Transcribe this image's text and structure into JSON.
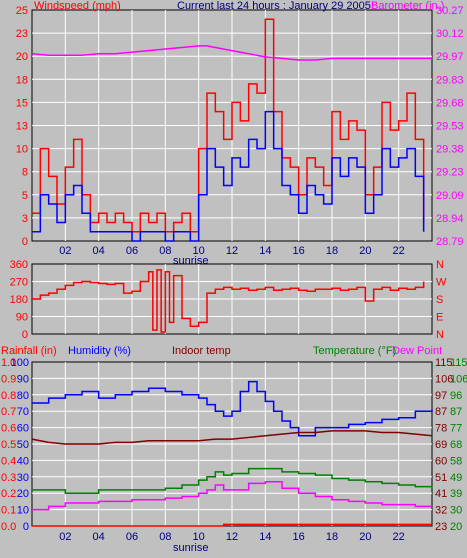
{
  "header": {
    "left_title": "Windspeed (mph)",
    "center_title": "Current last 24 hours : January 29 2005",
    "right_title": "Barometer (in.)"
  },
  "x_axis": {
    "ticks": [
      "02",
      "04",
      "06",
      "08",
      "10",
      "12",
      "14",
      "16",
      "18",
      "20",
      "22"
    ],
    "sunrise_label": "sunrise"
  },
  "colors": {
    "wind_gust": "#ff0000",
    "wind_avg": "#0000ff",
    "barometer": "#ff00ff",
    "wind_dir": "#ff0000",
    "humidity": "#0000ff",
    "indoor_temp": "#800000",
    "temperature": "#008000",
    "dew_point": "#ff00ff",
    "rain": "#ff0000",
    "grid": "#ffffff"
  },
  "chart_data": [
    {
      "type": "line",
      "name": "wind_and_barometer",
      "x_range": [
        0,
        24
      ],
      "left_axis": {
        "label": "Windspeed (mph)",
        "ticks": [
          "0",
          "3",
          "5",
          "8",
          "10",
          "13",
          "15",
          "18",
          "20",
          "23",
          "25"
        ],
        "ylim": [
          0,
          25
        ]
      },
      "right_axis": {
        "label": "Barometer (in.)",
        "ticks": [
          "28.79",
          "28.94",
          "29.09",
          "29.23",
          "29.38",
          "29.53",
          "29.68",
          "29.83",
          "29.97",
          "30.12",
          "30.27"
        ],
        "ylim": [
          28.79,
          30.27
        ]
      },
      "series": [
        {
          "name": "Gust",
          "x": [
            0,
            0.5,
            1,
            1.5,
            2,
            2.5,
            3,
            3.5,
            4,
            4.5,
            5,
            5.5,
            6,
            6.5,
            7,
            7.5,
            8,
            8.5,
            9,
            9.5,
            10,
            10.5,
            11,
            11.5,
            12,
            12.5,
            13,
            13.5,
            14,
            14.5,
            15,
            15.5,
            16,
            16.5,
            17,
            17.5,
            18,
            18.5,
            19,
            19.5,
            20,
            20.5,
            21,
            21.5,
            22,
            22.5,
            23,
            23.5
          ],
          "values": [
            3,
            10,
            7,
            4,
            8,
            11,
            5,
            2,
            3,
            2,
            3,
            2,
            1,
            3,
            2,
            3,
            1,
            2,
            3,
            1,
            10,
            16,
            14,
            11,
            15,
            13,
            17,
            16,
            24,
            14,
            9,
            8,
            5,
            9,
            8,
            6,
            14,
            11,
            13,
            12,
            5,
            8,
            15,
            12,
            13,
            16,
            11,
            2
          ]
        },
        {
          "name": "Average",
          "x": [
            0,
            0.5,
            1,
            1.5,
            2,
            2.5,
            3,
            3.5,
            4,
            4.5,
            5,
            5.5,
            6,
            6.5,
            7,
            7.5,
            8,
            8.5,
            9,
            9.5,
            10,
            10.5,
            11,
            11.5,
            12,
            12.5,
            13,
            13.5,
            14,
            14.5,
            15,
            15.5,
            16,
            16.5,
            17,
            17.5,
            18,
            18.5,
            19,
            19.5,
            20,
            20.5,
            21,
            21.5,
            22,
            22.5,
            23,
            23.5
          ],
          "values": [
            1,
            5,
            4,
            2,
            5,
            6,
            3,
            1,
            1,
            1,
            1,
            1,
            0,
            1,
            1,
            1,
            0,
            1,
            1,
            0,
            5,
            10,
            8,
            6,
            9,
            8,
            11,
            10,
            14,
            10,
            6,
            5,
            3,
            6,
            5,
            4,
            9,
            7,
            9,
            8,
            3,
            5,
            10,
            8,
            9,
            10,
            7,
            1
          ]
        },
        {
          "name": "Barometer",
          "axis": "right",
          "x": [
            0,
            1,
            2,
            3,
            4,
            5,
            6,
            7,
            8,
            9,
            10,
            10.5,
            11,
            12,
            13,
            14,
            15,
            16,
            17,
            18,
            19,
            20,
            21,
            22,
            23,
            24
          ],
          "values": [
            29.99,
            29.98,
            29.98,
            29.98,
            29.99,
            29.99,
            30.0,
            30.01,
            30.02,
            30.03,
            30.04,
            30.04,
            30.03,
            30.01,
            29.99,
            29.97,
            29.96,
            29.95,
            29.95,
            29.96,
            29.96,
            29.96,
            29.96,
            29.96,
            29.96,
            29.96
          ]
        }
      ]
    },
    {
      "type": "line",
      "name": "wind_direction",
      "x_range": [
        0,
        24
      ],
      "left_axis": {
        "ticks": [
          "0",
          "90",
          "180",
          "270",
          "360"
        ],
        "ylim": [
          0,
          360
        ]
      },
      "right_axis": {
        "ticks": [
          "N",
          "E",
          "S",
          "W",
          "N"
        ]
      },
      "series": [
        {
          "name": "Direction",
          "x": [
            0,
            0.5,
            1,
            1.5,
            2,
            2.5,
            3,
            3.5,
            4,
            4.5,
            5,
            5.5,
            6,
            6.5,
            7,
            7.25,
            7.5,
            7.75,
            8,
            8.25,
            8.5,
            9,
            9.5,
            10,
            10.5,
            11,
            11.5,
            12,
            12.5,
            13,
            13.5,
            14,
            14.5,
            15,
            15.5,
            16,
            16.5,
            17,
            17.5,
            18,
            18.5,
            19,
            19.5,
            20,
            20.5,
            21,
            21.5,
            22,
            22.5,
            23,
            23.5
          ],
          "values": [
            180,
            200,
            210,
            230,
            250,
            265,
            270,
            265,
            260,
            255,
            260,
            210,
            220,
            270,
            320,
            20,
            330,
            10,
            320,
            60,
            300,
            80,
            40,
            60,
            210,
            230,
            240,
            230,
            235,
            225,
            230,
            240,
            225,
            230,
            235,
            225,
            220,
            230,
            230,
            235,
            225,
            230,
            240,
            170,
            230,
            240,
            225,
            235,
            230,
            240,
            270
          ]
        }
      ]
    },
    {
      "type": "line",
      "name": "humidity_temperature",
      "x_range": [
        0,
        24
      ],
      "legend": [
        "Rainfall (in)",
        "Humidity (%)",
        "Indoor temp",
        "Temperature (°F)",
        "Dew Point"
      ],
      "left_axis_rain": {
        "label": "Rainfall (in)",
        "ticks": [
          "0.0",
          "0.1",
          "0.2",
          "0.3",
          "0.4",
          "0.5",
          "0.6",
          "0.7",
          "0.8",
          "0.9",
          "1.0"
        ],
        "ylim": [
          0,
          1.0
        ]
      },
      "left_axis_humidity": {
        "label": "Humidity (%)",
        "ticks": [
          "0",
          "10",
          "20",
          "30",
          "40",
          "50",
          "60",
          "70",
          "80",
          "90",
          "100"
        ],
        "ylim": [
          0,
          100
        ]
      },
      "right_axis_a": {
        "label": "Temperature (°F)",
        "ticks": [
          "23",
          "32",
          "41",
          "51",
          "60",
          "69",
          "78",
          "87",
          "97",
          "106",
          "115"
        ],
        "ylim": [
          23,
          115
        ]
      },
      "right_axis_b": {
        "label": "Dew Point",
        "ticks": [
          "20",
          "30",
          "39",
          "49",
          "58",
          "68",
          "77",
          "87",
          "96",
          "106",
          "115"
        ],
        "ylim": [
          20,
          115
        ]
      },
      "series": [
        {
          "name": "Humidity (%)",
          "x": [
            0,
            1,
            2,
            3,
            4,
            5,
            6,
            7,
            8,
            9,
            10,
            10.5,
            11,
            11.5,
            12,
            12.5,
            13,
            13.5,
            14,
            14.5,
            15,
            15.5,
            16,
            16.5,
            17,
            18,
            19,
            20,
            21,
            22,
            23,
            24
          ],
          "values": [
            75,
            78,
            80,
            82,
            78,
            80,
            82,
            84,
            82,
            80,
            78,
            74,
            70,
            67,
            70,
            82,
            88,
            82,
            76,
            70,
            64,
            60,
            55,
            55,
            60,
            60,
            62,
            63,
            65,
            66,
            70,
            71
          ]
        },
        {
          "name": "Indoor temp",
          "x": [
            0,
            1,
            2,
            3,
            4,
            5,
            6,
            7,
            8,
            9,
            10,
            11,
            12,
            13,
            14,
            15,
            16,
            17,
            18,
            19,
            20,
            21,
            22,
            23,
            24
          ],
          "values": [
            53,
            51,
            50,
            50,
            50,
            51,
            51,
            52,
            52,
            52,
            52,
            53,
            53,
            54,
            55,
            56,
            57,
            57,
            58,
            58,
            58,
            57,
            57,
            56,
            55
          ]
        },
        {
          "name": "Temperature",
          "x": [
            0,
            1,
            2,
            3,
            4,
            5,
            6,
            7,
            8,
            9,
            10,
            10.5,
            11,
            11.5,
            12,
            13,
            14,
            15,
            16,
            17,
            18,
            19,
            20,
            21,
            22,
            23,
            24
          ],
          "values": [
            22,
            22,
            20,
            20,
            22,
            22,
            22,
            22,
            23,
            25,
            28,
            30,
            33,
            31,
            32,
            35,
            35,
            33,
            32,
            31,
            29,
            28,
            27,
            26,
            25,
            24,
            23
          ]
        },
        {
          "name": "Dew Point",
          "x": [
            0,
            1,
            2,
            3,
            4,
            5,
            6,
            7,
            8,
            9,
            10,
            10.5,
            11,
            11.5,
            12,
            13,
            14,
            15,
            16,
            17,
            18,
            19,
            20,
            21,
            22,
            23,
            24
          ],
          "values": [
            10,
            12,
            14,
            14,
            15,
            15,
            16,
            16,
            17,
            18,
            20,
            22,
            25,
            22,
            22,
            26,
            27,
            23,
            20,
            18,
            16,
            15,
            14,
            13,
            13,
            12,
            12
          ]
        },
        {
          "name": "Rainfall (in)",
          "x": [
            0,
            11.5,
            11.5,
            24
          ],
          "values": [
            0.0,
            0.0,
            0.01,
            0.01
          ]
        }
      ]
    }
  ]
}
